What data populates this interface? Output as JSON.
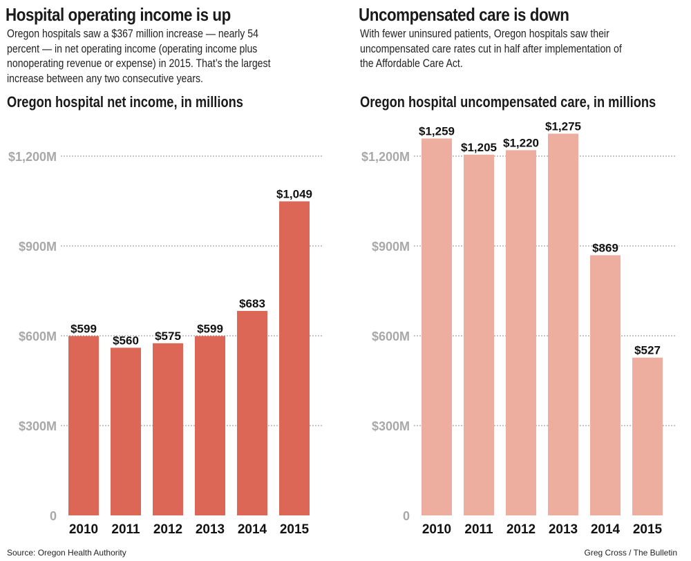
{
  "left": {
    "headline": "Hospital operating income is up",
    "description": "Oregon hospitals saw a $367 million increase — nearly 54\npercent — in net operating income (operating income plus\nnonoperating revenue or expense) in 2015. That’s the largest\nincrease between any two consecutive years.",
    "colors": {
      "bar": "#dd6757"
    }
  },
  "right": {
    "headline": "Uncompensated care is down",
    "description": "With fewer uninsured patients, Oregon hospitals saw their\nuncompensated care rates cut in half after implementation of\nthe Affordable Care Act.",
    "colors": {
      "bar": "#eeae9f"
    }
  },
  "chart_data": [
    {
      "type": "bar",
      "title": "Oregon hospital net income, in millions",
      "categories": [
        "2010",
        "2011",
        "2012",
        "2013",
        "2014",
        "2015"
      ],
      "values": [
        599,
        560,
        575,
        599,
        683,
        1049
      ],
      "value_labels": [
        "$599",
        "$560",
        "$575",
        "$599",
        "$683",
        "$1,049"
      ],
      "yticks": [
        0,
        300,
        600,
        900,
        1200
      ],
      "ytick_labels": [
        "0",
        "$300M",
        "$600M",
        "$900M",
        "$1,200M"
      ],
      "ylim": [
        0,
        1200
      ],
      "grid": true,
      "xlabel": "",
      "ylabel": ""
    },
    {
      "type": "bar",
      "title": "Oregon hospital uncompensated care, in millions",
      "categories": [
        "2010",
        "2011",
        "2012",
        "2013",
        "2014",
        "2015"
      ],
      "values": [
        1259,
        1205,
        1220,
        1275,
        869,
        527
      ],
      "value_labels": [
        "$1,259",
        "$1,205",
        "$1,220",
        "$1,275",
        "$869",
        "$527"
      ],
      "yticks": [
        0,
        300,
        600,
        900,
        1200
      ],
      "ytick_labels": [
        "0",
        "$300M",
        "$600M",
        "$900M",
        "$1,200M"
      ],
      "ylim": [
        0,
        1200
      ],
      "grid": true,
      "xlabel": "",
      "ylabel": ""
    }
  ],
  "footer": {
    "source": "Source: Oregon Health Authority",
    "credit": "Greg Cross / The Bulletin"
  }
}
